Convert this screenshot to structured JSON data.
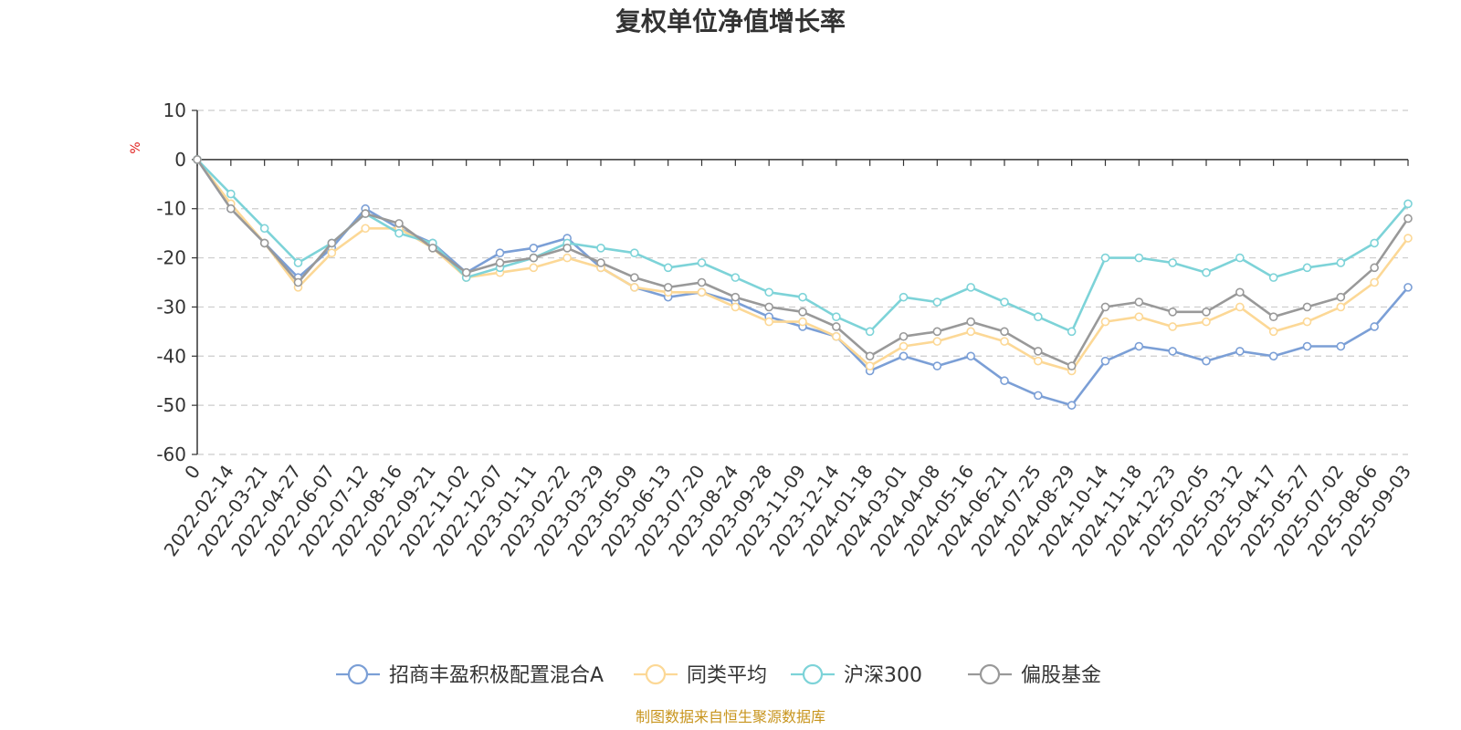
{
  "chart_data": {
    "type": "line",
    "title": "复权单位净值增长率",
    "ylabel": "%",
    "ylim": [
      -60,
      10
    ],
    "yticks": [
      "10",
      "0",
      "-10",
      "-20",
      "-30",
      "-40",
      "-50",
      "-60"
    ],
    "grid": "horizontal-dashed",
    "legend_position": "bottom-center",
    "source": "制图数据来自恒生聚源数据库",
    "x_labels": [
      "0",
      "2022-02-14",
      "2022-03-21",
      "2022-04-27",
      "2022-06-07",
      "2022-07-12",
      "2022-08-16",
      "2022-09-21",
      "2022-11-02",
      "2022-12-07",
      "2023-01-11",
      "2023-02-22",
      "2023-03-29",
      "2023-05-09",
      "2023-06-13",
      "2023-07-20",
      "2023-08-24",
      "2023-09-28",
      "2023-11-09",
      "2023-12-14",
      "2024-01-18",
      "2024-03-01",
      "2024-04-08",
      "2024-05-16",
      "2024-06-21",
      "2024-07-25",
      "2024-08-29",
      "2024-10-14",
      "2024-11-18",
      "2024-12-23",
      "2025-02-05",
      "2025-03-12",
      "2025-04-17",
      "2025-05-27",
      "2025-07-02",
      "2025-08-06",
      "2025-09-03"
    ],
    "series": [
      {
        "name": "招商丰盈积极配置混合A",
        "color": "#7b9fd6",
        "values": [
          0,
          -10,
          -17,
          -24,
          -18,
          -10,
          -14,
          -17,
          -23,
          -19,
          -18,
          -16,
          -22,
          -26,
          -28,
          -27,
          -29,
          -32,
          -34,
          -36,
          -43,
          -40,
          -42,
          -40,
          -45,
          -48,
          -50,
          -41,
          -38,
          -39,
          -41,
          -39,
          -40,
          -38,
          -38,
          -34,
          -26
        ]
      },
      {
        "name": "同类平均",
        "color": "#fcd896",
        "values": [
          0,
          -9,
          -17,
          -26,
          -19,
          -14,
          -14,
          -18,
          -24,
          -23,
          -22,
          -20,
          -22,
          -26,
          -27,
          -27,
          -30,
          -33,
          -33,
          -36,
          -42,
          -38,
          -37,
          -35,
          -37,
          -41,
          -43,
          -33,
          -32,
          -34,
          -33,
          -30,
          -35,
          -33,
          -30,
          -25,
          -16
        ]
      },
      {
        "name": "沪深300",
        "color": "#7dd3d8",
        "values": [
          0,
          -7,
          -14,
          -21,
          -17,
          -11,
          -15,
          -17,
          -24,
          -22,
          -20,
          -17,
          -18,
          -19,
          -22,
          -21,
          -24,
          -27,
          -28,
          -32,
          -35,
          -28,
          -29,
          -26,
          -29,
          -32,
          -35,
          -20,
          -20,
          -21,
          -23,
          -20,
          -24,
          -22,
          -21,
          -17,
          -9
        ]
      },
      {
        "name": "偏股基金",
        "color": "#999999",
        "values": [
          0,
          -10,
          -17,
          -25,
          -17,
          -11,
          -13,
          -18,
          -23,
          -21,
          -20,
          -18,
          -21,
          -24,
          -26,
          -25,
          -28,
          -30,
          -31,
          -34,
          -40,
          -36,
          -35,
          -33,
          -35,
          -39,
          -42,
          -30,
          -29,
          -31,
          -31,
          -27,
          -32,
          -30,
          -28,
          -22,
          -12
        ]
      }
    ]
  }
}
